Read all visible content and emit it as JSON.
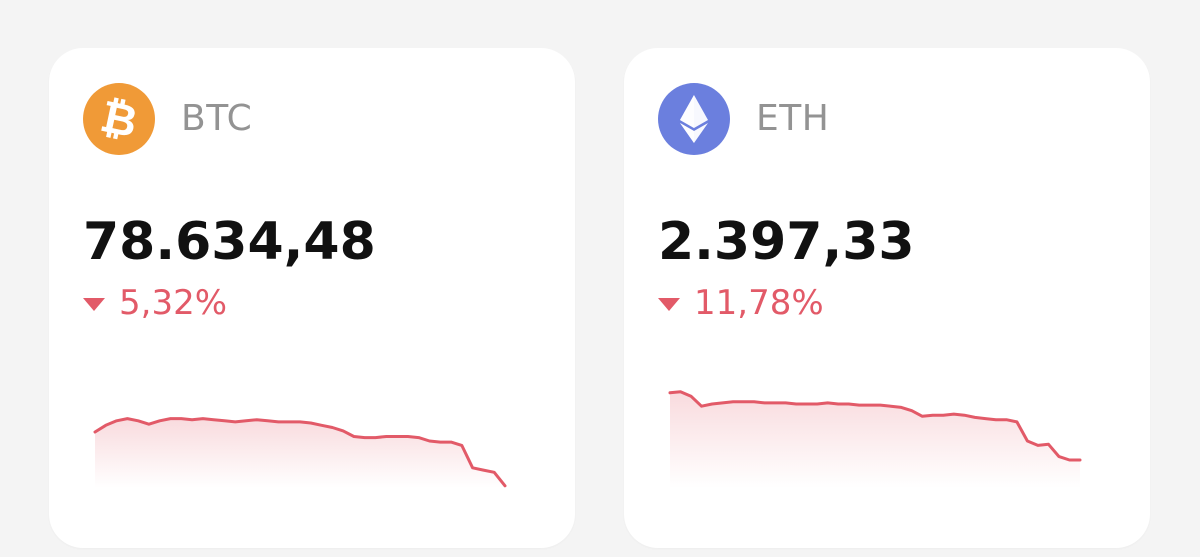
{
  "colors": {
    "down": "#e25a68",
    "background": "#f4f4f4",
    "card": "#ffffff"
  },
  "assets": [
    {
      "symbol": "BTC",
      "price": "78.634,48",
      "change": "5,32%",
      "direction": "down",
      "icon": "bitcoin-icon",
      "icon_color": "#f09a37",
      "sparkline": [
        50,
        56,
        60,
        62,
        60,
        57,
        60,
        62,
        62,
        61,
        62,
        61,
        60,
        59,
        60,
        61,
        60,
        59,
        59,
        59,
        58,
        56,
        54,
        51,
        46,
        45,
        45,
        46,
        46,
        46,
        45,
        42,
        41,
        41,
        38,
        18,
        16,
        14,
        2
      ]
    },
    {
      "symbol": "ETH",
      "price": "2.397,33",
      "change": "11,78%",
      "direction": "down",
      "icon": "ethereum-icon",
      "icon_color": "#6b7fde",
      "sparkline": [
        85,
        86,
        82,
        73,
        75,
        76,
        77,
        77,
        77,
        76,
        76,
        76,
        75,
        75,
        75,
        76,
        75,
        75,
        74,
        74,
        74,
        73,
        72,
        69,
        64,
        65,
        65,
        66,
        65,
        63,
        62,
        61,
        61,
        59,
        42,
        38,
        39,
        28,
        25,
        25
      ]
    }
  ]
}
